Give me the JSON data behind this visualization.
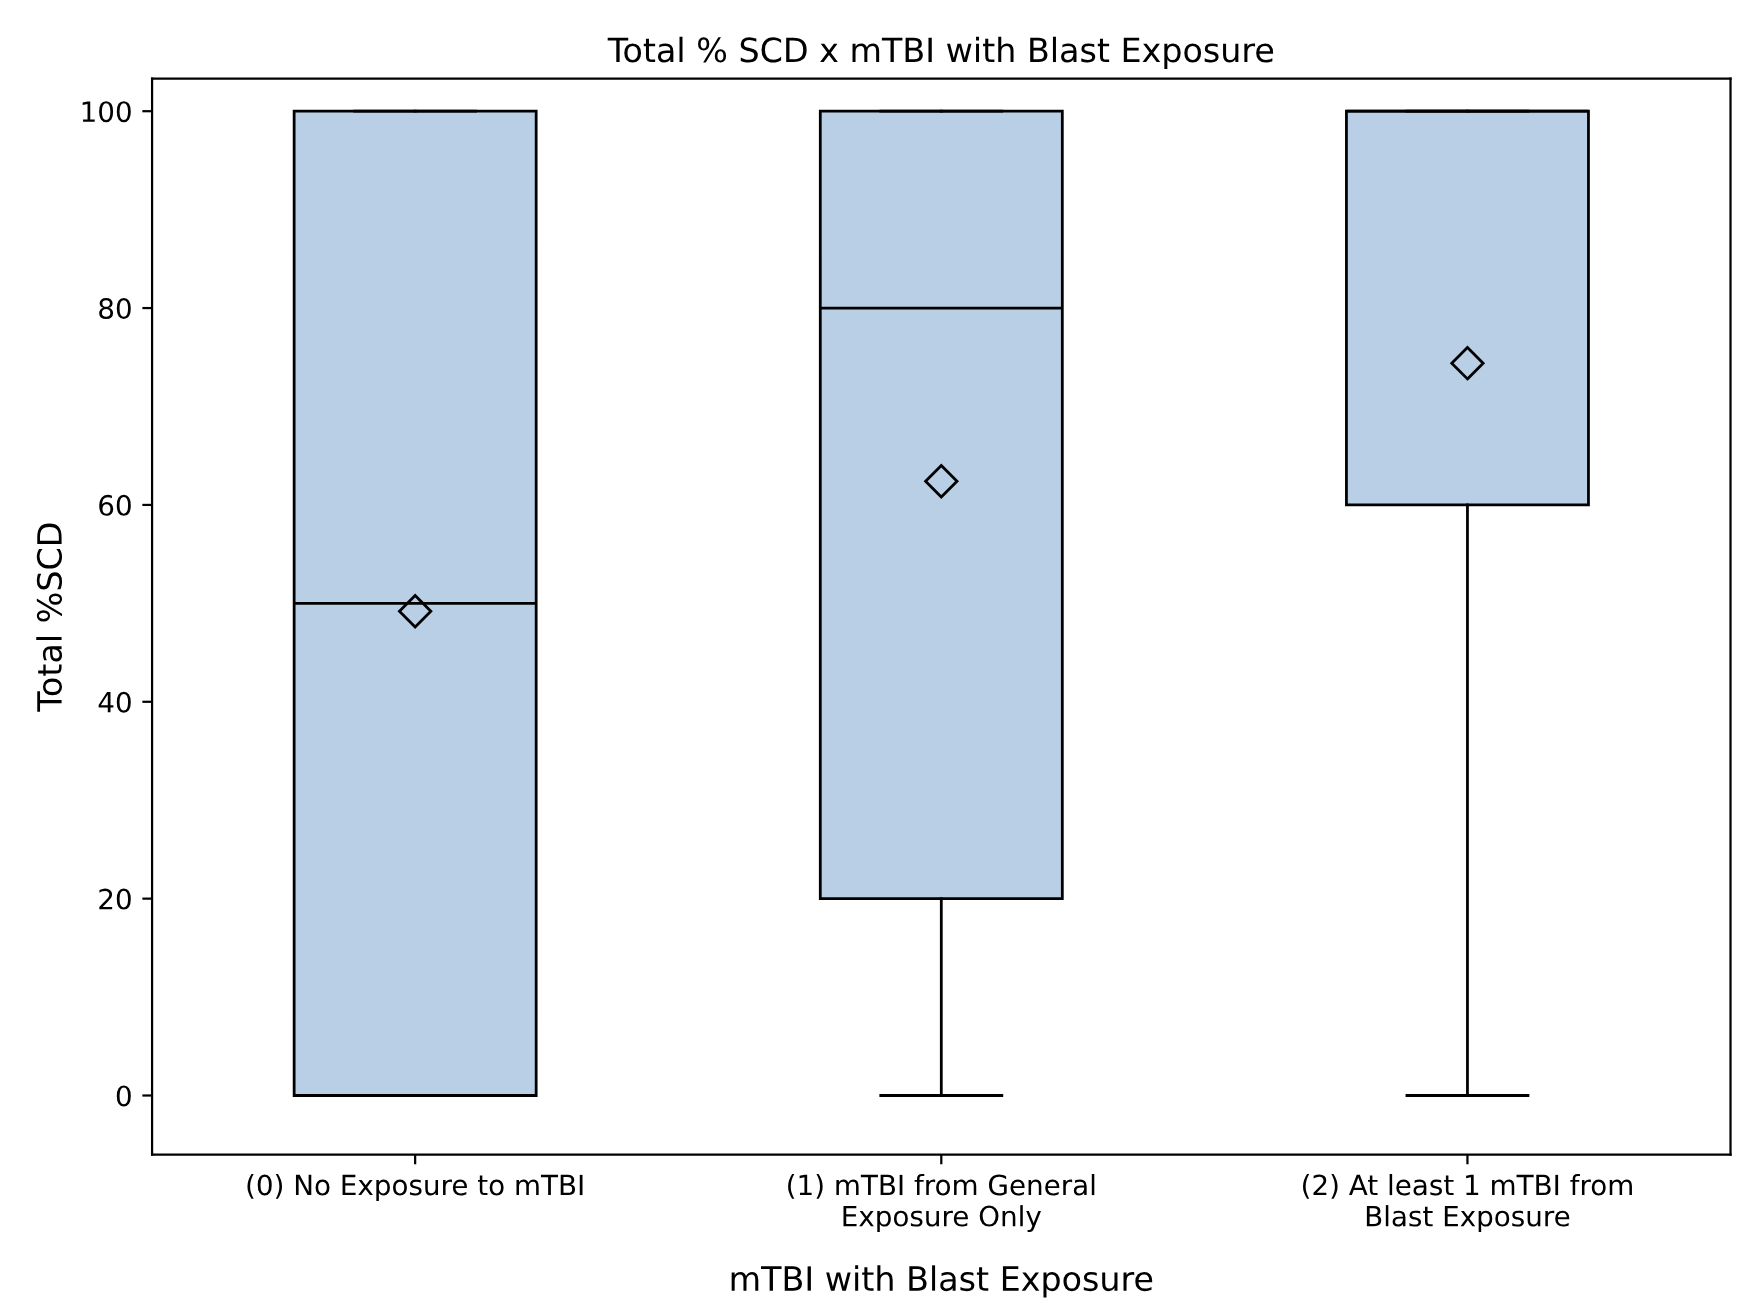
{
  "chart_data": {
    "type": "box",
    "title": "Total % SCD x mTBI with Blast Exposure",
    "xlabel": "mTBI with Blast Exposure",
    "ylabel": "Total %SCD",
    "categories": [
      "(0) No Exposure to mTBI",
      "(1) mTBI from General\nExposure Only",
      "(2) At least 1 mTBI from\nBlast Exposure"
    ],
    "boxes": [
      {
        "low": 0,
        "q1": 0,
        "median": 50,
        "q3": 100,
        "high": 100,
        "mean": 49.2
      },
      {
        "low": 0,
        "q1": 20,
        "median": 80,
        "q3": 100,
        "high": 100,
        "mean": 62.4
      },
      {
        "low": 0,
        "q1": 60,
        "median": 100,
        "q3": 100,
        "high": 100,
        "mean": 74.4
      }
    ],
    "color": "#b8cfe5",
    "marker": "diamond",
    "ylim": [
      -6,
      103.3
    ],
    "yticks": [
      0,
      20,
      40,
      60,
      80,
      100
    ],
    "grid": false
  }
}
